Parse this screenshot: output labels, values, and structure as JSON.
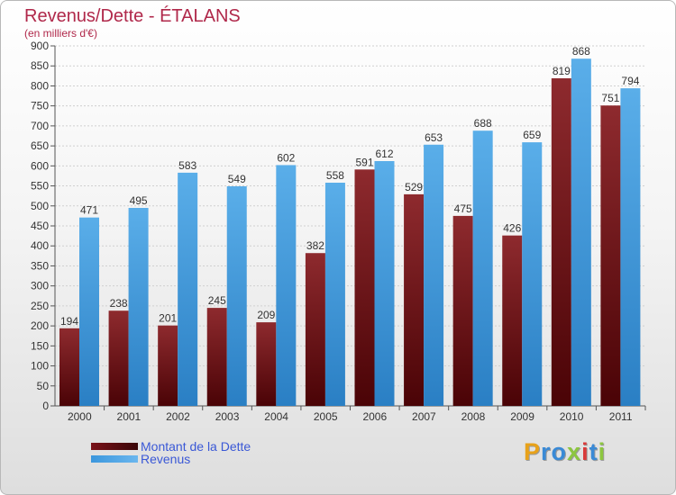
{
  "header": {
    "title": "Revenus/Dette - ÉTALANS",
    "subtitle": "(en milliers d'€)"
  },
  "colors": {
    "dette": "#7a1218",
    "revenus": "#3c97dd",
    "title": "#b0284a",
    "legend_text": "#3a58d6",
    "grid": "#d0d0d0"
  },
  "chart_data": {
    "type": "bar",
    "title": "Revenus/Dette - ÉTALANS",
    "subtitle": "(en milliers d'€)",
    "categories": [
      "2000",
      "2001",
      "2002",
      "2003",
      "2004",
      "2005",
      "2006",
      "2007",
      "2008",
      "2009",
      "2010",
      "2011"
    ],
    "series": [
      {
        "name": "Montant de la Dette",
        "values": [
          194,
          238,
          201,
          245,
          209,
          382,
          591,
          529,
          475,
          426,
          819,
          751
        ]
      },
      {
        "name": "Revenus",
        "values": [
          471,
          495,
          583,
          549,
          602,
          558,
          612,
          653,
          688,
          659,
          868,
          794
        ]
      }
    ],
    "ylim": [
      0,
      900
    ],
    "ytick_step": 50,
    "grid": true,
    "legend": "bottom-left"
  },
  "legend": {
    "items": [
      {
        "label": "Montant de la Dette",
        "color": "#7a1218"
      },
      {
        "label": "Revenus",
        "color": "#3c97dd"
      }
    ]
  },
  "logo": {
    "letters": [
      "P",
      "r",
      "o",
      "x",
      "i",
      "t",
      "i"
    ],
    "colors": [
      "#e8a21a",
      "#3a8ad6",
      "#3a8ad6",
      "#8cc63f",
      "#d93a3a",
      "#3a8ad6",
      "#8cc63f"
    ]
  }
}
